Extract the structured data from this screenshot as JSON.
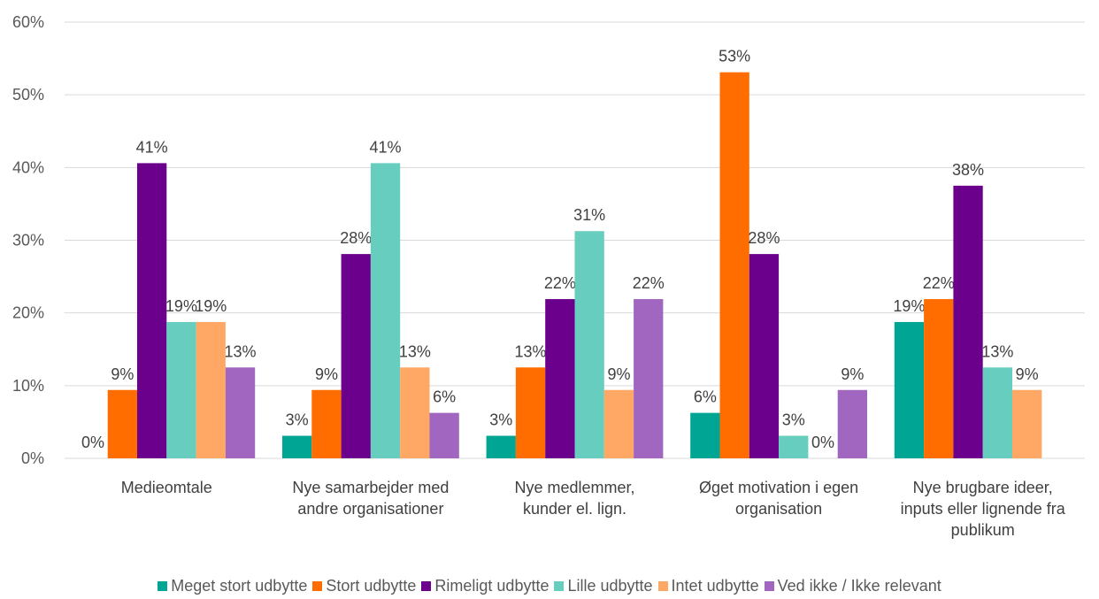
{
  "chart_data": {
    "type": "bar",
    "categories": [
      [
        "Medieomtale"
      ],
      [
        "Nye samarbejder med",
        "andre organisationer"
      ],
      [
        "Nye medlemmer,",
        "kunder el. lign."
      ],
      [
        "Øget motivation i egen",
        "organisation"
      ],
      [
        "Nye brugbare ideer,",
        "inputs eller lignende fra",
        "publikum"
      ]
    ],
    "series": [
      {
        "name": "Meget stort udbytte",
        "color": "#00A693",
        "values": [
          0,
          3,
          3,
          6,
          19
        ]
      },
      {
        "name": "Stort udbytte",
        "color": "#FF6D00",
        "values": [
          9,
          9,
          13,
          53,
          22
        ]
      },
      {
        "name": "Rimeligt udbytte",
        "color": "#6A008C",
        "values": [
          41,
          28,
          22,
          28,
          38
        ]
      },
      {
        "name": "Lille udbytte",
        "color": "#66CDBF",
        "values": [
          19,
          41,
          31,
          3,
          13
        ]
      },
      {
        "name": "Intet udbytte",
        "color": "#FFA866",
        "values": [
          19,
          13,
          9,
          0,
          9
        ]
      },
      {
        "name": "Ved ikke / Ikke relevant",
        "color": "#A066C0",
        "values": [
          13,
          6,
          22,
          9,
          null
        ]
      }
    ],
    "precise_values": [
      [
        0,
        3.1,
        3.1,
        6.25,
        18.75
      ],
      [
        9.4,
        9.4,
        12.5,
        53.1,
        21.9
      ],
      [
        40.6,
        28.1,
        21.9,
        28.1,
        37.5
      ],
      [
        18.75,
        40.6,
        31.25,
        3.1,
        12.5
      ],
      [
        18.75,
        12.5,
        9.4,
        0,
        9.4
      ],
      [
        12.5,
        6.25,
        21.9,
        9.4,
        null
      ]
    ],
    "y_ticks": [
      "0%",
      "10%",
      "20%",
      "30%",
      "40%",
      "50%",
      "60%"
    ],
    "ylim": [
      0,
      60
    ],
    "value_suffix": "%",
    "grid": true,
    "legend_position": "bottom"
  }
}
